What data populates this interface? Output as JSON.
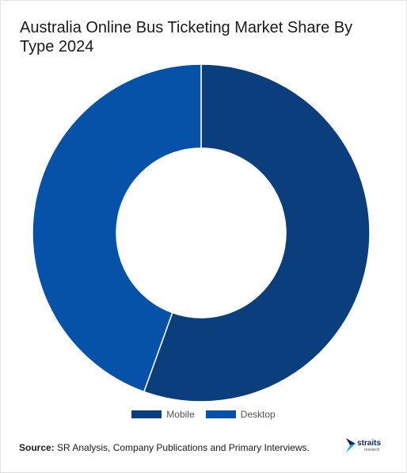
{
  "chart_data": {
    "type": "pie",
    "title": "Australia Online Bus Ticketing Market Share By Type 2024",
    "categories": [
      "Mobile",
      "Desktop"
    ],
    "values": [
      55.5,
      44.5
    ],
    "unit": "%",
    "colors": [
      "#0b3e7c",
      "#0552a8"
    ],
    "legend_position": "bottom"
  },
  "footer": {
    "source_label": "Source:",
    "source_text": " SR Analysis, Company Publications and Primary Interviews."
  },
  "logo": {
    "name": "straits",
    "subtitle": "research"
  }
}
